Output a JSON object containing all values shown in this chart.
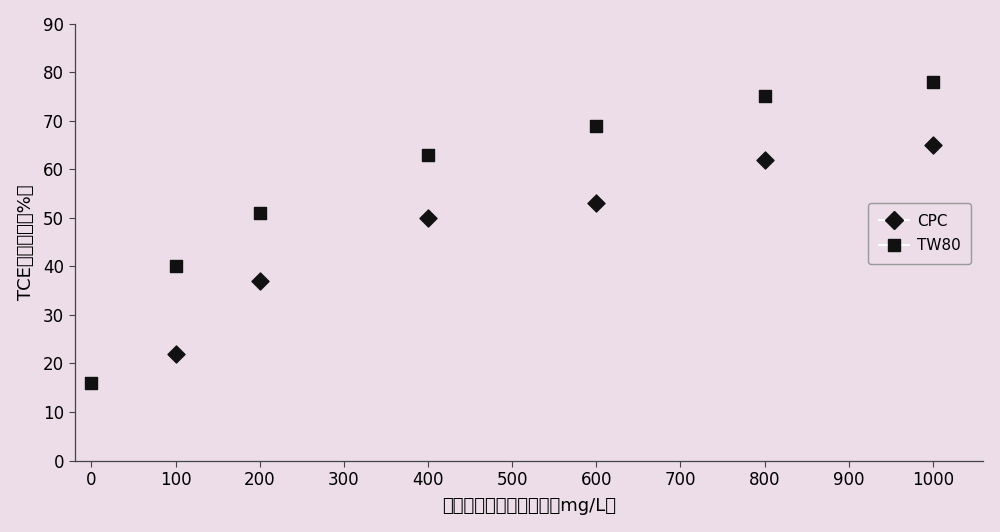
{
  "cpc_x": [
    100,
    200,
    400,
    600,
    800,
    1000
  ],
  "cpc_y": [
    22,
    37,
    50,
    53,
    62,
    65
  ],
  "tw80_x": [
    0,
    100,
    200,
    400,
    600,
    800,
    1000
  ],
  "tw80_y": [
    16,
    40,
    51,
    63,
    69,
    75,
    78
  ],
  "xlim": [
    -20,
    1060
  ],
  "ylim": [
    0,
    90
  ],
  "xticks": [
    0,
    100,
    200,
    300,
    400,
    500,
    600,
    700,
    800,
    900,
    1000
  ],
  "yticks": [
    0,
    10,
    20,
    30,
    40,
    50,
    60,
    70,
    80,
    90
  ],
  "xlabel": "表面活性剂的质量浓度（mg/L）",
  "ylabel": "TCE的截留率（%）",
  "marker_color": "#111111",
  "background_color": "#ecdde8",
  "spine_color": "#444444",
  "legend_cpc": "CPC",
  "legend_tw80": "TW80",
  "tick_label_size": 12,
  "axis_label_size": 13
}
